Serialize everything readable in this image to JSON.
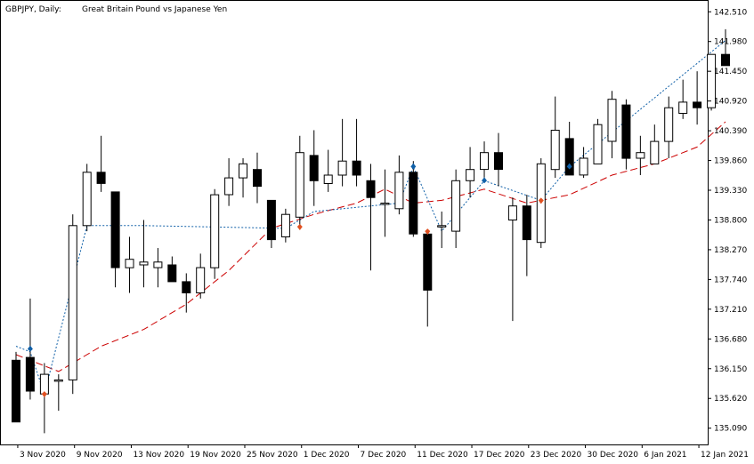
{
  "header": {
    "symbol_label": "GBPJPY, Daily:",
    "description": "Great Britain Pound vs Japanese Yen"
  },
  "chart_data": {
    "type": "candlestick",
    "title": "GBPJPY, Daily:  Great Britain Pound vs Japanese Yen",
    "ylim": [
      134.8,
      142.72
    ],
    "y_ticks": [
      142.51,
      141.98,
      141.45,
      140.92,
      140.39,
      139.86,
      139.33,
      138.8,
      138.27,
      137.74,
      137.21,
      136.68,
      136.15,
      135.62,
      135.09
    ],
    "x_ticks": [
      {
        "label": "3 Nov 2020",
        "index": 1
      },
      {
        "label": "9 Nov 2020",
        "index": 5
      },
      {
        "label": "13 Nov 2020",
        "index": 9
      },
      {
        "label": "19 Nov 2020",
        "index": 13
      },
      {
        "label": "25 Nov 2020",
        "index": 17
      },
      {
        "label": "1 Dec 2020",
        "index": 21
      },
      {
        "label": "7 Dec 2020",
        "index": 25
      },
      {
        "label": "11 Dec 2020",
        "index": 29
      },
      {
        "label": "17 Dec 2020",
        "index": 33
      },
      {
        "label": "23 Dec 2020",
        "index": 37
      },
      {
        "label": "30 Dec 2020",
        "index": 41
      },
      {
        "label": "6 Jan 2021",
        "index": 45
      },
      {
        "label": "12 Jan 2021",
        "index": 49
      }
    ],
    "candles": [
      {
        "o": 136.3,
        "h": 136.45,
        "l": 135.2,
        "c": 135.2
      },
      {
        "o": 136.35,
        "h": 137.4,
        "l": 135.6,
        "c": 135.75
      },
      {
        "o": 135.7,
        "h": 136.25,
        "l": 135.0,
        "c": 136.05
      },
      {
        "o": 135.95,
        "h": 136.05,
        "l": 135.4,
        "c": 135.95
      },
      {
        "o": 135.95,
        "h": 138.9,
        "l": 135.7,
        "c": 138.7
      },
      {
        "o": 138.7,
        "h": 139.8,
        "l": 138.6,
        "c": 139.65
      },
      {
        "o": 139.65,
        "h": 140.3,
        "l": 139.3,
        "c": 139.45
      },
      {
        "o": 139.3,
        "h": 139.3,
        "l": 137.6,
        "c": 137.95
      },
      {
        "o": 137.95,
        "h": 138.5,
        "l": 137.5,
        "c": 138.1
      },
      {
        "o": 138.0,
        "h": 138.8,
        "l": 137.6,
        "c": 138.05
      },
      {
        "o": 137.95,
        "h": 138.3,
        "l": 137.6,
        "c": 138.05
      },
      {
        "o": 138.0,
        "h": 138.15,
        "l": 137.7,
        "c": 137.7
      },
      {
        "o": 137.7,
        "h": 137.85,
        "l": 137.15,
        "c": 137.5
      },
      {
        "o": 137.5,
        "h": 138.2,
        "l": 137.4,
        "c": 137.95
      },
      {
        "o": 137.95,
        "h": 139.35,
        "l": 137.75,
        "c": 139.25
      },
      {
        "o": 139.25,
        "h": 139.9,
        "l": 139.05,
        "c": 139.55
      },
      {
        "o": 139.55,
        "h": 139.9,
        "l": 139.2,
        "c": 139.8
      },
      {
        "o": 139.7,
        "h": 140.0,
        "l": 139.1,
        "c": 139.4
      },
      {
        "o": 139.15,
        "h": 139.15,
        "l": 138.3,
        "c": 138.45
      },
      {
        "o": 138.5,
        "h": 139.0,
        "l": 138.4,
        "c": 138.9
      },
      {
        "o": 138.85,
        "h": 140.3,
        "l": 138.7,
        "c": 140.0
      },
      {
        "o": 139.95,
        "h": 140.4,
        "l": 139.05,
        "c": 139.5
      },
      {
        "o": 139.45,
        "h": 140.05,
        "l": 139.3,
        "c": 139.6
      },
      {
        "o": 139.6,
        "h": 140.6,
        "l": 139.4,
        "c": 139.85
      },
      {
        "o": 139.85,
        "h": 140.6,
        "l": 139.4,
        "c": 139.6
      },
      {
        "o": 139.5,
        "h": 139.8,
        "l": 137.9,
        "c": 139.2
      },
      {
        "o": 139.1,
        "h": 139.7,
        "l": 138.5,
        "c": 139.1
      },
      {
        "o": 139.0,
        "h": 139.95,
        "l": 138.9,
        "c": 139.65
      },
      {
        "o": 139.65,
        "h": 139.85,
        "l": 138.5,
        "c": 138.55
      },
      {
        "o": 138.55,
        "h": 138.6,
        "l": 136.9,
        "c": 137.55
      },
      {
        "o": 138.7,
        "h": 138.95,
        "l": 138.3,
        "c": 138.7
      },
      {
        "o": 138.6,
        "h": 139.7,
        "l": 138.3,
        "c": 139.5
      },
      {
        "o": 139.5,
        "h": 140.1,
        "l": 139.2,
        "c": 139.7
      },
      {
        "o": 139.7,
        "h": 140.2,
        "l": 139.5,
        "c": 140.0
      },
      {
        "o": 140.0,
        "h": 140.35,
        "l": 139.4,
        "c": 139.7
      },
      {
        "o": 138.8,
        "h": 139.2,
        "l": 137.0,
        "c": 139.05
      },
      {
        "o": 139.05,
        "h": 139.25,
        "l": 137.8,
        "c": 138.45
      },
      {
        "o": 138.4,
        "h": 139.9,
        "l": 138.3,
        "c": 139.8
      },
      {
        "o": 139.7,
        "h": 141.0,
        "l": 139.55,
        "c": 140.4
      },
      {
        "o": 140.25,
        "h": 140.55,
        "l": 139.6,
        "c": 139.6
      },
      {
        "o": 139.6,
        "h": 140.1,
        "l": 139.55,
        "c": 139.9
      },
      {
        "o": 139.8,
        "h": 140.6,
        "l": 139.8,
        "c": 140.5
      },
      {
        "o": 140.2,
        "h": 141.1,
        "l": 139.9,
        "c": 140.95
      },
      {
        "o": 140.85,
        "h": 140.95,
        "l": 139.7,
        "c": 139.9
      },
      {
        "o": 139.9,
        "h": 140.3,
        "l": 139.6,
        "c": 140.0
      },
      {
        "o": 139.8,
        "h": 140.5,
        "l": 139.8,
        "c": 140.2
      },
      {
        "o": 140.2,
        "h": 141.0,
        "l": 139.9,
        "c": 140.8
      },
      {
        "o": 140.7,
        "h": 141.3,
        "l": 140.6,
        "c": 140.9
      },
      {
        "o": 140.9,
        "h": 141.45,
        "l": 140.5,
        "c": 140.8
      },
      {
        "o": 140.8,
        "h": 141.75,
        "l": 140.75,
        "c": 141.75
      },
      {
        "o": 141.75,
        "h": 142.2,
        "l": 141.55,
        "c": 141.55
      }
    ],
    "moving_average": [
      {
        "index": 0,
        "value": 136.4
      },
      {
        "index": 3,
        "value": 136.1
      },
      {
        "index": 6,
        "value": 136.55
      },
      {
        "index": 9,
        "value": 136.85
      },
      {
        "index": 12,
        "value": 137.3
      },
      {
        "index": 15,
        "value": 137.9
      },
      {
        "index": 18,
        "value": 138.65
      },
      {
        "index": 21,
        "value": 138.9
      },
      {
        "index": 24,
        "value": 139.1
      },
      {
        "index": 26,
        "value": 139.35
      },
      {
        "index": 28,
        "value": 139.1
      },
      {
        "index": 30,
        "value": 139.15
      },
      {
        "index": 33,
        "value": 139.35
      },
      {
        "index": 36,
        "value": 139.1
      },
      {
        "index": 39,
        "value": 139.25
      },
      {
        "index": 42,
        "value": 139.6
      },
      {
        "index": 45,
        "value": 139.8
      },
      {
        "index": 48,
        "value": 140.1
      },
      {
        "index": 50,
        "value": 140.55
      }
    ],
    "zigzag": [
      {
        "index": 0,
        "value": 136.55
      },
      {
        "index": 1,
        "value": 136.45
      },
      {
        "index": 2,
        "value": 135.7
      },
      {
        "index": 5,
        "value": 138.7
      },
      {
        "index": 9,
        "value": 138.7
      },
      {
        "index": 19,
        "value": 138.65
      },
      {
        "index": 21,
        "value": 138.95
      },
      {
        "index": 27,
        "value": 139.1
      },
      {
        "index": 28,
        "value": 139.75
      },
      {
        "index": 30,
        "value": 138.6
      },
      {
        "index": 33,
        "value": 139.5
      },
      {
        "index": 37,
        "value": 139.15
      },
      {
        "index": 39,
        "value": 139.75
      },
      {
        "index": 50,
        "value": 142.0
      }
    ],
    "fractals_up": [
      {
        "index": 1,
        "value": 136.5
      },
      {
        "index": 28,
        "value": 139.75
      },
      {
        "index": 33,
        "value": 139.5
      },
      {
        "index": 39,
        "value": 139.75
      }
    ],
    "fractals_down": [
      {
        "index": 2,
        "value": 135.7
      },
      {
        "index": 20,
        "value": 138.68
      },
      {
        "index": 29,
        "value": 138.6
      },
      {
        "index": 37,
        "value": 139.15
      }
    ],
    "colors": {
      "bull_fill": "#ffffff",
      "bear_fill": "#000000",
      "candle_outline": "#000000",
      "moving_average": "#cc0000",
      "zigzag": "#1060a8",
      "marker_up": "#1060a8",
      "marker_down": "#e05020",
      "grid": "#000000"
    }
  }
}
